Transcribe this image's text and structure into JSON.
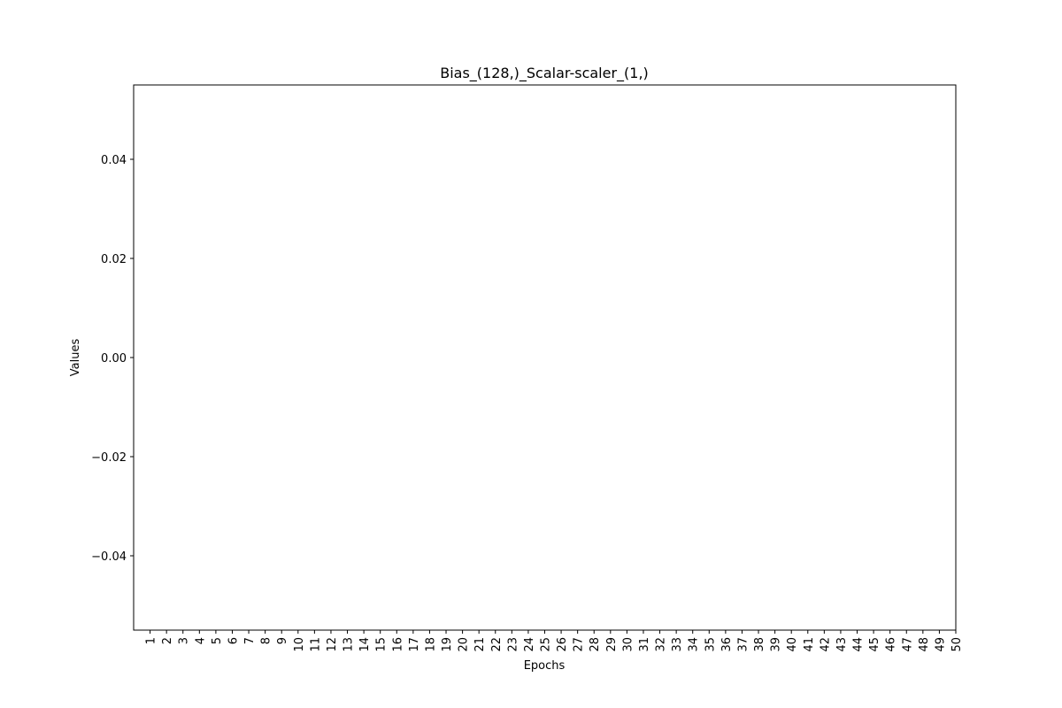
{
  "chart_data": {
    "type": "line",
    "title": "Bias_(128,)_Scalar-scaler_(1,)",
    "xlabel": "Epochs",
    "ylabel": "Values",
    "xlim": [
      0,
      50
    ],
    "xticks": [
      1,
      2,
      3,
      4,
      5,
      6,
      7,
      8,
      9,
      10,
      11,
      12,
      13,
      14,
      15,
      16,
      17,
      18,
      19,
      20,
      21,
      22,
      23,
      24,
      25,
      26,
      27,
      28,
      29,
      30,
      31,
      32,
      33,
      34,
      35,
      36,
      37,
      38,
      39,
      40,
      41,
      42,
      43,
      44,
      45,
      46,
      47,
      48,
      49,
      50
    ],
    "ylim": [
      -0.055,
      0.055
    ],
    "yticks": [
      {
        "value": -0.04,
        "label": "−0.04"
      },
      {
        "value": -0.02,
        "label": "−0.02"
      },
      {
        "value": 0,
        "label": "0.00"
      },
      0.02,
      0.04
    ]
  }
}
